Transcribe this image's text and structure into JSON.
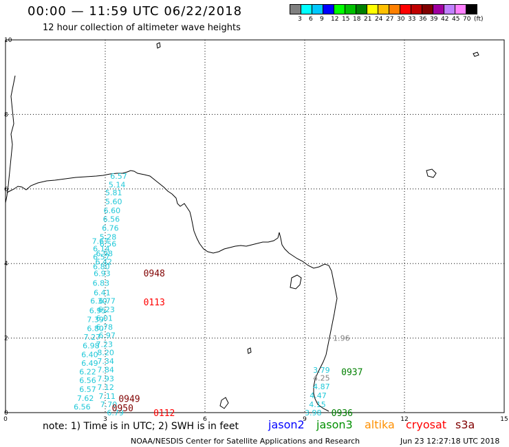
{
  "header": {
    "title": "00:00 — 11:59 UTC 06/22/2018",
    "subtitle": "12 hour collection of altimeter wave heights"
  },
  "color_scale": {
    "colors": [
      "#808080",
      "#00ffff",
      "#00c8ff",
      "#0000ff",
      "#00ff00",
      "#00c000",
      "#008000",
      "#ffff00",
      "#ffc000",
      "#ff8000",
      "#ff0000",
      "#c00000",
      "#800000",
      "#a000a0",
      "#c080ff",
      "#ff80ff",
      "#000000"
    ],
    "labels": [
      "3",
      "6",
      "9",
      "12",
      "15",
      "18",
      "21",
      "24",
      "27",
      "30",
      "33",
      "36",
      "39",
      "42",
      "45",
      "70"
    ],
    "unit": "(ft)"
  },
  "axes": {
    "x_ticks": [
      "0",
      "3",
      "6",
      "9",
      "12",
      "15"
    ],
    "y_ticks": [
      "0",
      "2",
      "4",
      "6",
      "8",
      "10"
    ]
  },
  "observations": [
    {
      "lon": 3.15,
      "lat": 6.35,
      "val": "6.57",
      "color": "#20c8d8"
    },
    {
      "lon": 3.1,
      "lat": 6.12,
      "val": "5.14",
      "color": "#20c8d8"
    },
    {
      "lon": 3.0,
      "lat": 5.9,
      "val": "5.81",
      "color": "#20c8d8"
    },
    {
      "lon": 3.0,
      "lat": 5.66,
      "val": "5.60",
      "color": "#20c8d8"
    },
    {
      "lon": 2.95,
      "lat": 5.42,
      "val": "6.60",
      "color": "#20c8d8"
    },
    {
      "lon": 2.93,
      "lat": 5.19,
      "val": "6.56",
      "color": "#20c8d8"
    },
    {
      "lon": 2.9,
      "lat": 4.95,
      "val": "6.76",
      "color": "#20c8d8"
    },
    {
      "lon": 2.83,
      "lat": 4.71,
      "val": "5.28",
      "color": "#20c8d8"
    },
    {
      "lon": 2.6,
      "lat": 4.6,
      "val": "7.67",
      "color": "#20c8d8"
    },
    {
      "lon": 2.83,
      "lat": 4.53,
      "val": "6.56",
      "color": "#20c8d8"
    },
    {
      "lon": 2.63,
      "lat": 4.4,
      "val": "6.14",
      "color": "#20c8d8"
    },
    {
      "lon": 2.72,
      "lat": 4.27,
      "val": "6.98",
      "color": "#20c8d8"
    },
    {
      "lon": 2.63,
      "lat": 4.18,
      "val": "6.57",
      "color": "#20c8d8"
    },
    {
      "lon": 2.7,
      "lat": 4.05,
      "val": "6.42",
      "color": "#20c8d8"
    },
    {
      "lon": 2.63,
      "lat": 3.92,
      "val": "6.80",
      "color": "#20c8d8"
    },
    {
      "lon": 2.65,
      "lat": 3.74,
      "val": "6.93",
      "color": "#20c8d8"
    },
    {
      "lon": 2.62,
      "lat": 3.48,
      "val": "6.83",
      "color": "#20c8d8"
    },
    {
      "lon": 2.65,
      "lat": 3.22,
      "val": "6.41",
      "color": "#20c8d8"
    },
    {
      "lon": 2.55,
      "lat": 3.0,
      "val": "6.30",
      "color": "#20c8d8"
    },
    {
      "lon": 2.8,
      "lat": 3.0,
      "val": "6.77",
      "color": "#20c8d8"
    },
    {
      "lon": 2.78,
      "lat": 2.77,
      "val": "6.23",
      "color": "#20c8d8"
    },
    {
      "lon": 2.52,
      "lat": 2.74,
      "val": "6.95",
      "color": "#20c8d8"
    },
    {
      "lon": 2.72,
      "lat": 2.54,
      "val": "6.01",
      "color": "#20c8d8"
    },
    {
      "lon": 2.45,
      "lat": 2.5,
      "val": "7.39",
      "color": "#20c8d8"
    },
    {
      "lon": 2.72,
      "lat": 2.3,
      "val": "6.78",
      "color": "#20c8d8"
    },
    {
      "lon": 2.45,
      "lat": 2.26,
      "val": "6.80",
      "color": "#20c8d8"
    },
    {
      "lon": 2.8,
      "lat": 2.08,
      "val": "6.97",
      "color": "#20c8d8"
    },
    {
      "lon": 2.35,
      "lat": 2.03,
      "val": "7.27",
      "color": "#20c8d8"
    },
    {
      "lon": 2.72,
      "lat": 1.84,
      "val": "7.23",
      "color": "#20c8d8"
    },
    {
      "lon": 2.32,
      "lat": 1.8,
      "val": "6.98",
      "color": "#20c8d8"
    },
    {
      "lon": 2.76,
      "lat": 1.61,
      "val": "8.20",
      "color": "#20c8d8"
    },
    {
      "lon": 2.28,
      "lat": 1.56,
      "val": "6.40",
      "color": "#20c8d8"
    },
    {
      "lon": 2.76,
      "lat": 1.38,
      "val": "7.34",
      "color": "#20c8d8"
    },
    {
      "lon": 2.28,
      "lat": 1.33,
      "val": "6.49",
      "color": "#20c8d8"
    },
    {
      "lon": 2.76,
      "lat": 1.15,
      "val": "7.84",
      "color": "#20c8d8"
    },
    {
      "lon": 2.22,
      "lat": 1.1,
      "val": "6.22",
      "color": "#20c8d8"
    },
    {
      "lon": 2.76,
      "lat": 0.91,
      "val": "7.93",
      "color": "#20c8d8"
    },
    {
      "lon": 2.22,
      "lat": 0.87,
      "val": "6.56",
      "color": "#20c8d8"
    },
    {
      "lon": 2.76,
      "lat": 0.68,
      "val": "7.12",
      "color": "#20c8d8"
    },
    {
      "lon": 2.22,
      "lat": 0.63,
      "val": "6.57",
      "color": "#20c8d8"
    },
    {
      "lon": 2.8,
      "lat": 0.44,
      "val": "7.11",
      "color": "#20c8d8"
    },
    {
      "lon": 2.15,
      "lat": 0.39,
      "val": "7.62",
      "color": "#20c8d8"
    },
    {
      "lon": 2.85,
      "lat": 0.22,
      "val": "7.70",
      "color": "#20c8d8"
    },
    {
      "lon": 2.05,
      "lat": 0.16,
      "val": "6.56",
      "color": "#20c8d8"
    },
    {
      "lon": 3.05,
      "lat": 0.0,
      "val": "6.79",
      "color": "#20c8d8"
    },
    {
      "lon": 9.0,
      "lat": 0.0,
      "val": "3.98",
      "color": "#20c8d8"
    },
    {
      "lon": 9.13,
      "lat": 0.22,
      "val": "4.15",
      "color": "#20c8d8"
    },
    {
      "lon": 9.15,
      "lat": 0.46,
      "val": "4.47",
      "color": "#20c8d8"
    },
    {
      "lon": 9.25,
      "lat": 0.7,
      "val": "4.87",
      "color": "#20c8d8"
    },
    {
      "lon": 9.25,
      "lat": 0.93,
      "val": "4.25",
      "color": "#808080"
    },
    {
      "lon": 9.25,
      "lat": 1.14,
      "val": "3.79",
      "color": "#20c8d8"
    },
    {
      "lon": 9.85,
      "lat": 2.0,
      "val": "1.96",
      "color": "#808080"
    }
  ],
  "time_tags": [
    {
      "lon": 4.15,
      "lat": 3.75,
      "text": "0948",
      "color": "#800000"
    },
    {
      "lon": 4.15,
      "lat": 2.97,
      "text": "0113",
      "color": "#ff0000"
    },
    {
      "lon": 3.4,
      "lat": 0.38,
      "text": "0949",
      "color": "#800000"
    },
    {
      "lon": 3.2,
      "lat": 0.13,
      "text": "0950",
      "color": "#800000"
    },
    {
      "lon": 4.45,
      "lat": 0.0,
      "text": "0112",
      "color": "#ff0000"
    },
    {
      "lon": 10.1,
      "lat": 1.1,
      "text": "0937",
      "color": "#008000"
    },
    {
      "lon": 9.8,
      "lat": 0.0,
      "text": "0936",
      "color": "#008000"
    }
  ],
  "footer": {
    "note": "note: 1) Time is in UTC; 2) SWH is in feet",
    "legend": [
      {
        "name": "jason2",
        "color": "#0000ff"
      },
      {
        "name": "jason3",
        "color": "#009000"
      },
      {
        "name": "altika",
        "color": "#ff9000"
      },
      {
        "name": "cryosat",
        "color": "#ff0000"
      },
      {
        "name": "s3a",
        "color": "#800000"
      }
    ],
    "credit": "NOAA/NESDIS Center for Satellite Applications and Research",
    "timestamp": "Jun 23 12:27:18 UTC 2018"
  }
}
